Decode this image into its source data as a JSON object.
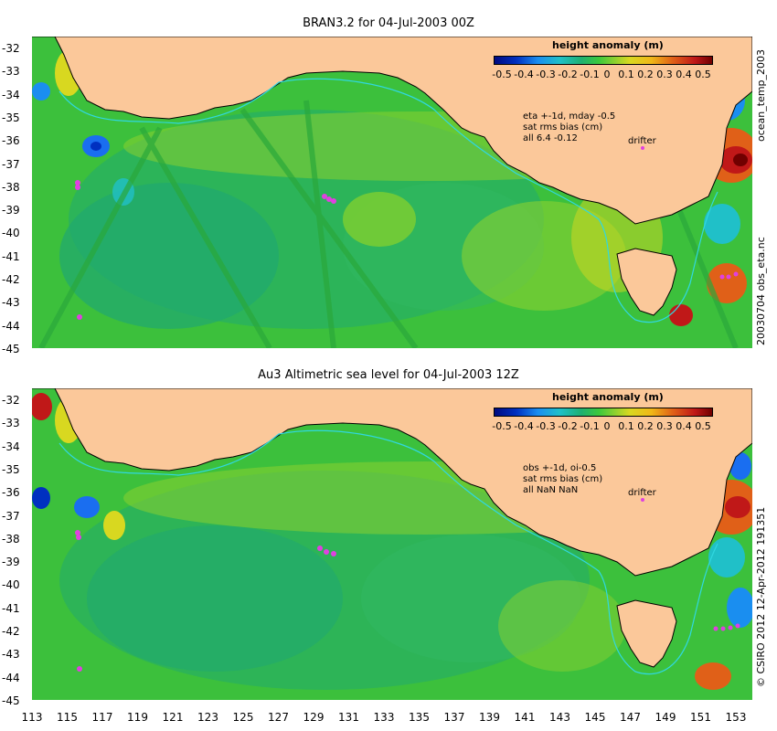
{
  "panels": [
    {
      "title": "BRAN3.2 for 04-Jul-2003 00Z",
      "colorbar_title": "height anomaly (m)",
      "colorbar_ticks": [
        "-0.5",
        "-0.4",
        "-0.3",
        "-0.2",
        "-0.1",
        "0",
        "0.1",
        "0.2",
        "0.3",
        "0.4",
        "0.5"
      ],
      "annotations": [
        "eta +-1d, mday -0.5",
        "sat rms bias (cm)",
        "all 6.4 -0.12"
      ],
      "drifter_label": "drifter",
      "side_label": "ocean_temp_2003"
    },
    {
      "title": "Au3 Altimetric sea level  for 04-Jul-2003 12Z",
      "colorbar_title": "height anomaly (m)",
      "colorbar_ticks": [
        "-0.5",
        "-0.4",
        "-0.3",
        "-0.2",
        "-0.1",
        "0",
        "0.1",
        "0.2",
        "0.3",
        "0.4",
        "0.5"
      ],
      "annotations": [
        "obs +-1d, oi-0.5",
        "sat rms bias (cm)",
        "all NaN NaN"
      ],
      "drifter_label": "drifter"
    }
  ],
  "side_label_mid": "20030704 obs_eta.nc",
  "side_label_bottom": "© CSIRO  2012   12-Apr-2012 191351",
  "y_ticks": [
    "-32",
    "-33",
    "-34",
    "-35",
    "-36",
    "-37",
    "-38",
    "-39",
    "-40",
    "-41",
    "-42",
    "-43",
    "-44",
    "-45"
  ],
  "x_ticks": [
    "113",
    "115",
    "117",
    "119",
    "121",
    "123",
    "125",
    "127",
    "129",
    "131",
    "133",
    "135",
    "137",
    "139",
    "141",
    "143",
    "145",
    "147",
    "149",
    "151",
    "153"
  ],
  "colors": {
    "land": "#fbc89a",
    "ocean": "#3cc03c",
    "coast": "#000000",
    "contour": "#30d8e0",
    "drifter": "#e040e0"
  }
}
